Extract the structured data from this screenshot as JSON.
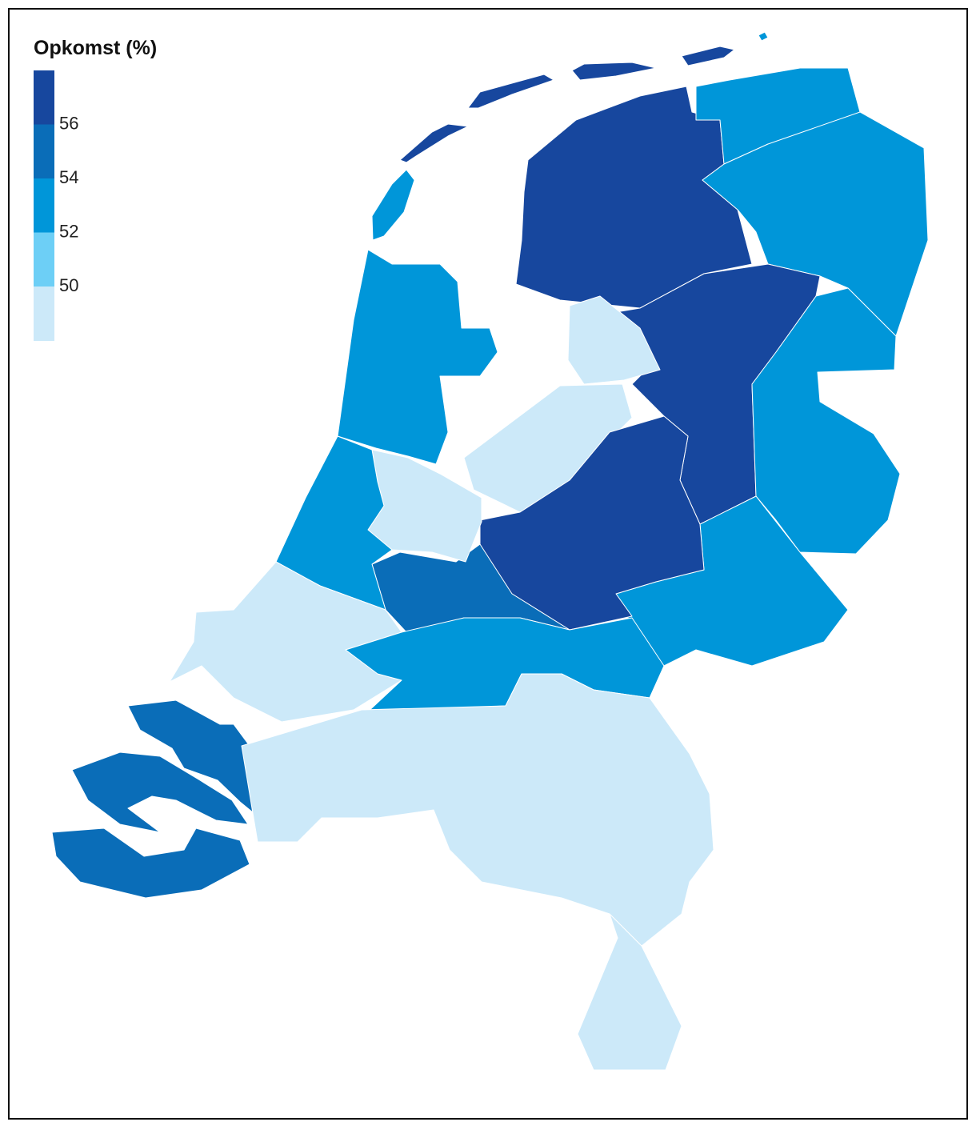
{
  "legend": {
    "title": "Opkomst (%)",
    "ticks": [
      56,
      54,
      52,
      50
    ],
    "colors": [
      "#17479e",
      "#0a6db8",
      "#0096d9",
      "#6dcff6",
      "#cce9f9"
    ]
  }
}
